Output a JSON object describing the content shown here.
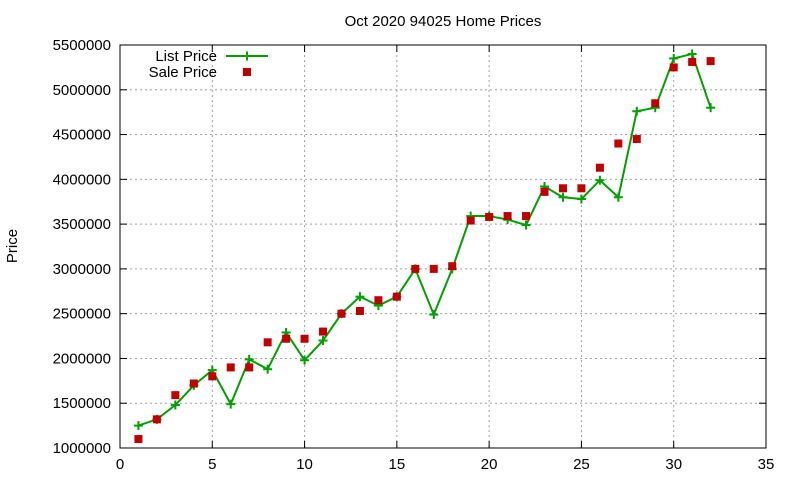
{
  "chart_data": {
    "type": "line",
    "title": "Oct 2020 94025 Home Prices",
    "xlabel": "",
    "ylabel": "Price",
    "xlim": [
      0,
      35
    ],
    "ylim": [
      1000000,
      5500000
    ],
    "x_ticks": [
      0,
      5,
      10,
      15,
      20,
      25,
      30,
      35
    ],
    "y_ticks": [
      1000000,
      1500000,
      2000000,
      2500000,
      3000000,
      3500000,
      4000000,
      4500000,
      5000000,
      5500000
    ],
    "grid": true,
    "legend_position": "top-left",
    "colors": {
      "list": "#00a000",
      "sale": "#c00000"
    },
    "series": [
      {
        "name": "List Price",
        "style": "line-with-plus-markers",
        "x": [
          1,
          2,
          3,
          4,
          5,
          6,
          7,
          8,
          9,
          10,
          11,
          12,
          13,
          14,
          15,
          16,
          17,
          18,
          19,
          20,
          21,
          22,
          23,
          24,
          25,
          26,
          27,
          28,
          29,
          30,
          31,
          32
        ],
        "values": [
          1250000,
          1320000,
          1480000,
          1700000,
          1870000,
          1490000,
          1990000,
          1880000,
          2290000,
          1980000,
          2200000,
          2500000,
          2690000,
          2590000,
          2690000,
          3000000,
          2490000,
          3000000,
          3590000,
          3590000,
          3550000,
          3490000,
          3920000,
          3800000,
          3780000,
          3990000,
          3800000,
          4760000,
          4800000,
          5350000,
          5400000,
          4800000
        ]
      },
      {
        "name": "Sale Price",
        "style": "square-markers",
        "x": [
          1,
          2,
          3,
          4,
          5,
          6,
          7,
          8,
          9,
          10,
          11,
          12,
          13,
          14,
          15,
          16,
          17,
          18,
          19,
          20,
          21,
          22,
          23,
          24,
          25,
          26,
          27,
          28,
          29,
          30,
          31,
          32
        ],
        "values": [
          1100000,
          1320000,
          1590000,
          1720000,
          1800000,
          1900000,
          1900000,
          2180000,
          2220000,
          2220000,
          2300000,
          2500000,
          2530000,
          2650000,
          2690000,
          3000000,
          3000000,
          3030000,
          3540000,
          3580000,
          3590000,
          3590000,
          3860000,
          3900000,
          3900000,
          4130000,
          4400000,
          4450000,
          4850000,
          5250000,
          5310000,
          5320000
        ]
      }
    ]
  }
}
